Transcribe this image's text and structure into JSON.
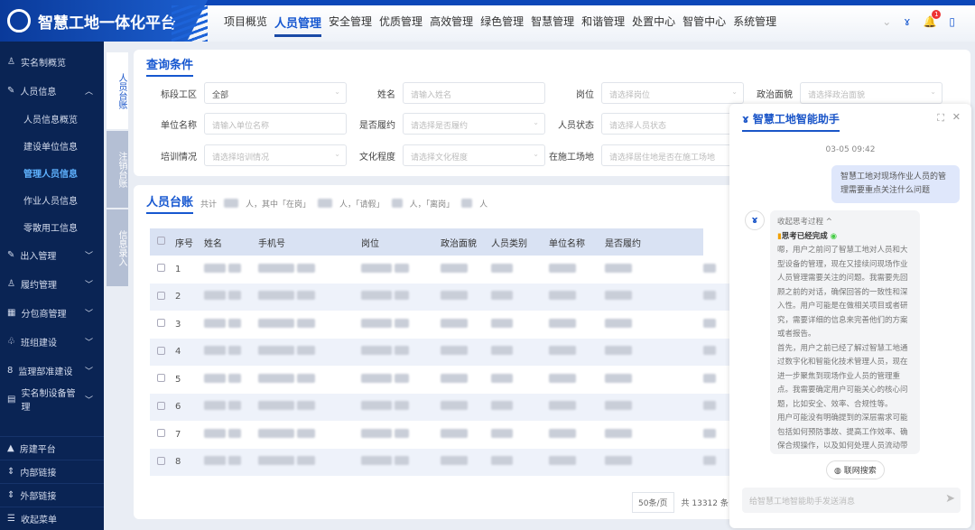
{
  "app": {
    "title": "智慧工地一体化平台"
  },
  "nav": {
    "items": [
      "项目概览",
      "人员管理",
      "安全管理",
      "优质管理",
      "高效管理",
      "绿色管理",
      "智慧管理",
      "和谐管理",
      "处置中心",
      "智管中心",
      "系统管理"
    ],
    "active": "人员管理",
    "notification_count": "1"
  },
  "sidebar": {
    "items": [
      {
        "label": "实名制概览"
      },
      {
        "label": "人员信息",
        "expanded": true,
        "children": [
          "人员信息概览",
          "建设单位信息",
          "管理人员信息",
          "作业人员信息",
          "零散用工信息"
        ],
        "active": "管理人员信息"
      },
      {
        "label": "出入管理"
      },
      {
        "label": "履约管理"
      },
      {
        "label": "分包商管理"
      },
      {
        "label": "班组建设"
      },
      {
        "label": "监理部准建设"
      },
      {
        "label": "实名制设备管理"
      }
    ],
    "bottom": [
      "房建平台",
      "内部链接",
      "外部链接",
      "收起菜单"
    ]
  },
  "vtabs": [
    "人员台账",
    "注销台账",
    "信息录入"
  ],
  "query": {
    "title": "查询条件",
    "fields": [
      {
        "label": "标段工区",
        "value": "全部"
      },
      {
        "label": "姓名",
        "placeholder": "请输入姓名"
      },
      {
        "label": "岗位",
        "placeholder": "请选择岗位"
      },
      {
        "label": "政治面貌",
        "placeholder": "请选择政治面貌"
      },
      {
        "label": "单位名称",
        "placeholder": "请输入单位名称"
      },
      {
        "label": "是否履约",
        "placeholder": "请选择是否履约"
      },
      {
        "label": "人员状态",
        "placeholder": "请选择人员状态"
      },
      {
        "label": "培训情况",
        "placeholder": "请选择培训情况"
      },
      {
        "label": "文化程度",
        "placeholder": "请选择文化程度"
      },
      {
        "label": "在施工场地",
        "placeholder": "请选择居住地是否在施工场地"
      }
    ]
  },
  "ledger": {
    "title": "人员台账",
    "stats": [
      "共计",
      "人，其中「在岗」",
      "人，「请假」",
      "人，「离岗」",
      "人"
    ],
    "columns": [
      "序号",
      "姓名",
      "手机号",
      "岗位",
      "政治面貌",
      "人员类别",
      "单位名称",
      "是否履约"
    ],
    "rows": [
      "1",
      "2",
      "3",
      "4",
      "5",
      "6",
      "7",
      "8"
    ],
    "page_size": "50条/页",
    "total": "共 13312 条"
  },
  "chat": {
    "title": "智慧工地智能助手",
    "timestamp": "03-05 09:42",
    "user_message": "智慧工地对现场作业人员的管理需要重点关注什么问题",
    "collapse_label": "收起思考过程 ^",
    "status": "思考已经完成",
    "thinking": [
      "嗯，用户之前问了智慧工地对人员和大型设备的管理，现在又接续问现场作业人员管理需要关注的问题。我需要先回顾之前的对话，确保回答的一致性和深入性。用户可能是在做相关项目或者研究，需要详细的信息来完善他们的方案或者报告。",
      "首先，用户之前已经了解过智慧工地通过数字化和智能化技术管理人员，现在进一步聚焦到现场作业人员的管理重点。我需要确定用户可能关心的核心问题，比如安全、效率、合规性等。",
      "用户可能没有明确提到的深层需求可能包括如何预防事故、提高工作效率、确保合规操作，以及如何处理人员流动带来的管理难题。此外，他们可能还想知道具体的技术应用"
    ],
    "web_search_label": "联网搜索",
    "input_placeholder": "给智慧工地智能助手发送消息"
  },
  "colors": {
    "primary": "#1657d0",
    "sidebar": "#0a2454",
    "header_accent": "#0d47b8"
  }
}
